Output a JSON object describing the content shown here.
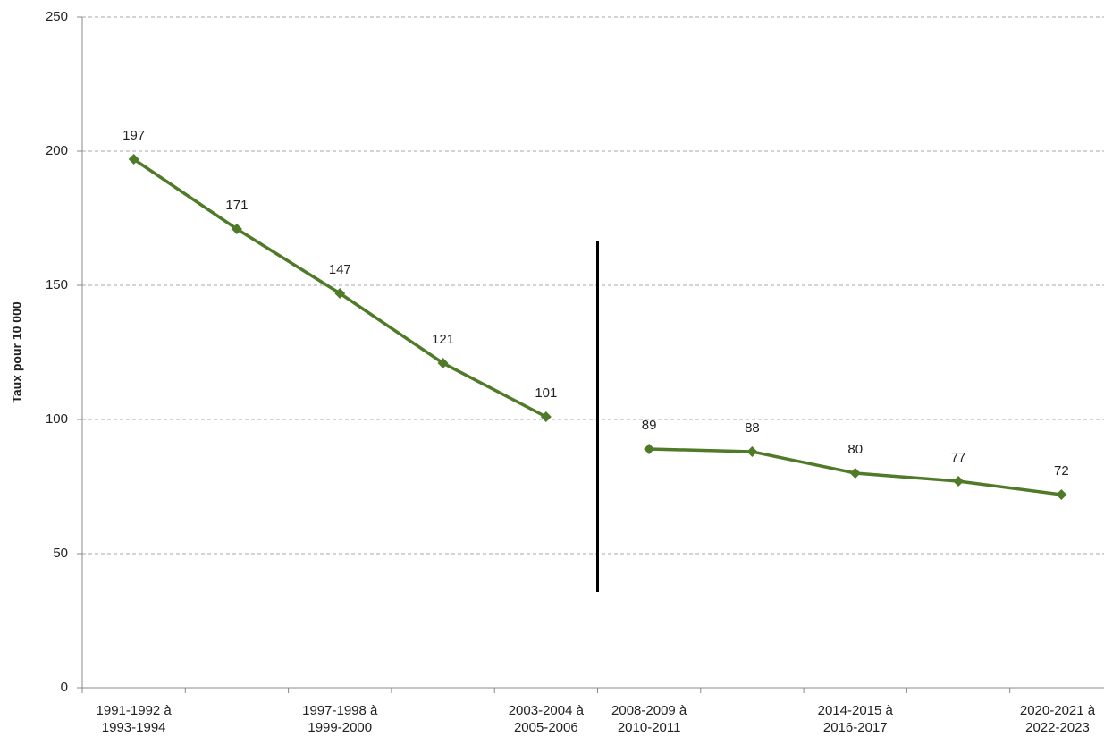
{
  "chart_data": {
    "type": "line",
    "y_label": "Taux pour 10 000",
    "categories": [
      "1991-1992 à 1993-1994",
      null,
      "1997-1998 à 1999-2000",
      null,
      "2003-2004 à 2005-2006",
      "2008-2009 à 2010-2011",
      null,
      "2014-2015 à 2016-2017",
      null,
      "2020-2021 à 2022-2023"
    ],
    "series": [
      {
        "color": "#4f7a28",
        "values": [
          197,
          171,
          147,
          121,
          101,
          null,
          null,
          null,
          null,
          null
        ]
      },
      {
        "color": "#4f7a28",
        "values": [
          null,
          null,
          null,
          null,
          null,
          89,
          88,
          80,
          77,
          72
        ]
      }
    ],
    "ylim": [
      0,
      250
    ],
    "yticks": [
      0,
      50,
      100,
      150,
      200,
      250
    ],
    "grid": true
  }
}
